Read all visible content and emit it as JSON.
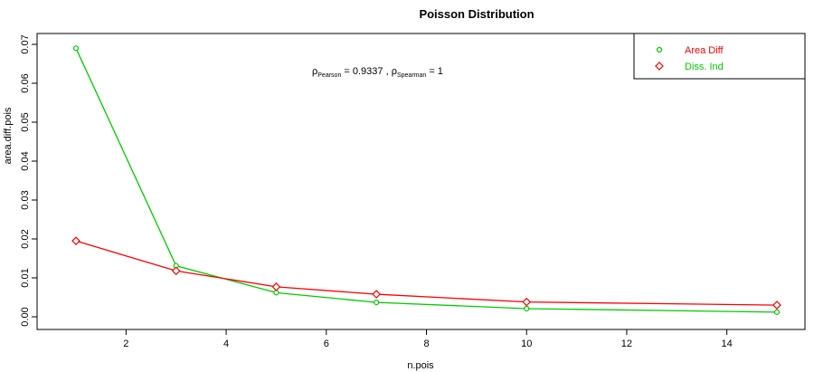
{
  "chart_data": {
    "type": "line",
    "title": "Poisson Distribution",
    "xlabel": "n.pois",
    "ylabel": "area.diff.pois",
    "xlim": [
      1,
      15
    ],
    "ylim": [
      0,
      0.07
    ],
    "xticks": [
      "2",
      "4",
      "6",
      "8",
      "10",
      "12",
      "14"
    ],
    "yticks": [
      "0.00",
      "0.01",
      "0.02",
      "0.03",
      "0.04",
      "0.05",
      "0.06",
      "0.07"
    ],
    "x": [
      1,
      3,
      5,
      7,
      10,
      15
    ],
    "series": [
      {
        "name": "Area Diff",
        "color": "#00cc00",
        "marker": "circle",
        "values": [
          0.069,
          0.0131,
          0.0062,
          0.0037,
          0.0021,
          0.0012
        ]
      },
      {
        "name": "Diss. Ind",
        "color": "#ff0000",
        "marker": "diamond",
        "values": [
          0.0195,
          0.0118,
          0.0077,
          0.0058,
          0.0038,
          0.003
        ]
      }
    ],
    "legend": {
      "placement": "top-right",
      "items": [
        {
          "label": "Area Diff",
          "text_color": "#ff0000",
          "marker_color": "#00cc00",
          "marker": "circle"
        },
        {
          "label": "Diss. Ind",
          "text_color": "#00cc00",
          "marker_color": "#ff0000",
          "marker": "diamond"
        }
      ]
    },
    "annotation": {
      "rho1": "ρ",
      "sub1": "Pearson",
      "val1": " = 0.9337 , ",
      "rho2": "ρ",
      "sub2": "Spearman",
      "val2": " = 1"
    },
    "grid": false
  }
}
